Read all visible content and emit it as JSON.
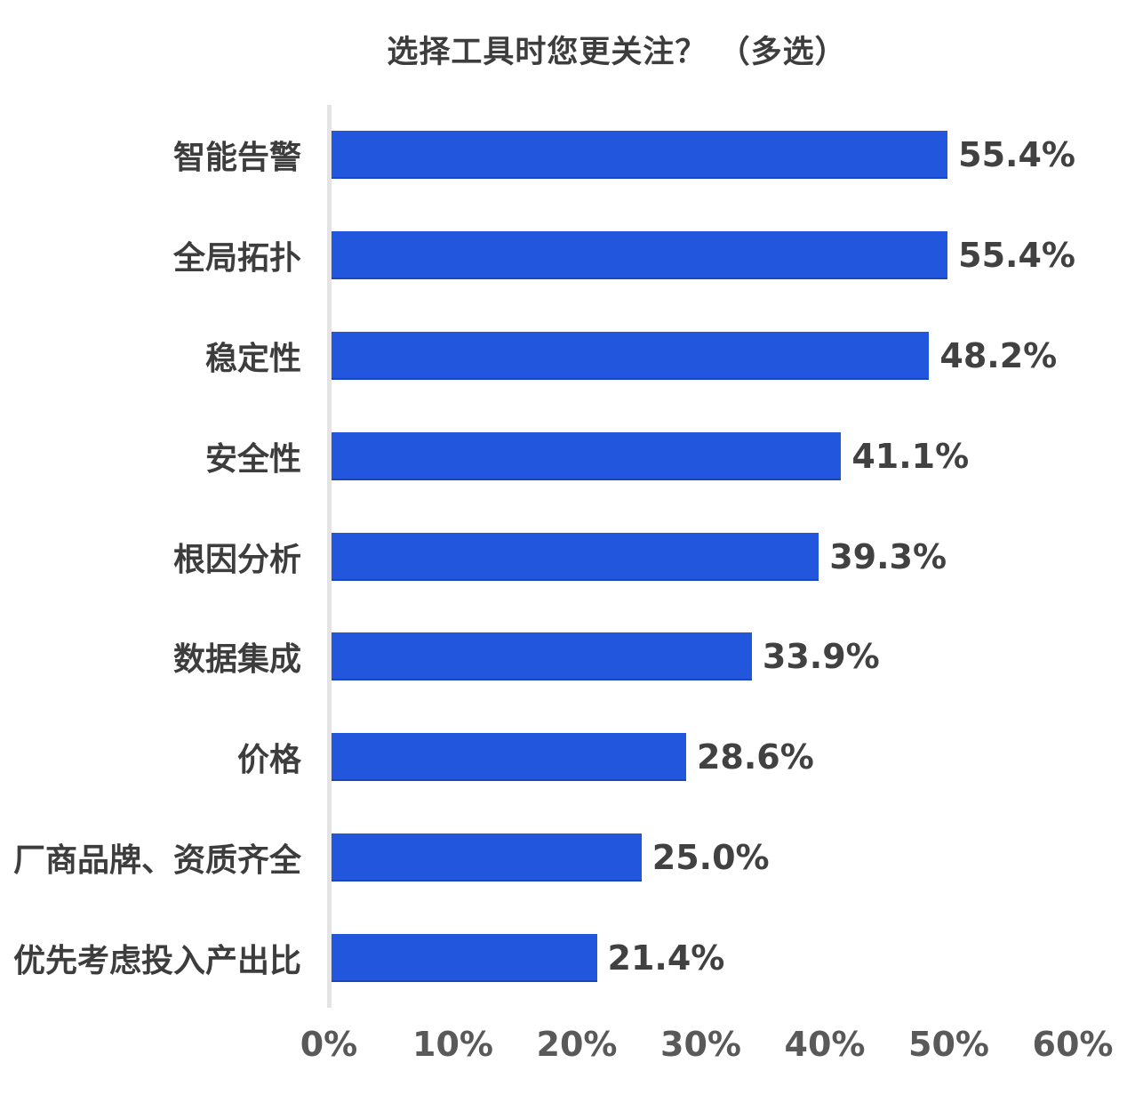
{
  "chart_data": {
    "type": "bar",
    "orientation": "horizontal",
    "title": "选择工具时您更关注？ （多选）",
    "categories": [
      "智能告警",
      "全局拓扑",
      "稳定性",
      "安全性",
      "根因分析",
      "数据集成",
      "价格",
      "厂商品牌、资质齐全",
      "优先考虑投入产出比"
    ],
    "values": [
      55.4,
      55.4,
      48.2,
      41.1,
      39.3,
      33.9,
      28.6,
      25.0,
      21.4
    ],
    "value_labels": [
      "55.4%",
      "55.4%",
      "48.2%",
      "41.1%",
      "39.3%",
      "33.9%",
      "28.6%",
      "25.0%",
      "21.4%"
    ],
    "x_ticks": [
      "0%",
      "10%",
      "20%",
      "30%",
      "40%",
      "50%",
      "60%"
    ],
    "xlim": [
      0,
      60
    ],
    "xlabel": "",
    "ylabel": "",
    "grid": false,
    "legend": null,
    "bar_color": "#2156DD",
    "title_color": "#3D3D3D",
    "label_color": "#3D3D3D",
    "value_color": "#414141",
    "tick_color": "#595959",
    "axis_line_color": "#E4E4E4",
    "background_color": "#FFFFFF"
  }
}
